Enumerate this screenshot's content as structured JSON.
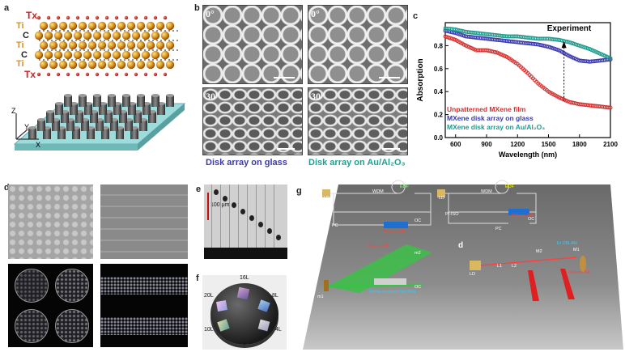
{
  "panels": {
    "a": {
      "label": "a",
      "layers": [
        "Tx",
        "Ti",
        "C",
        "Ti",
        "C",
        "Ti",
        "Tx"
      ],
      "axes": {
        "z": "Z",
        "y": "Y",
        "x": "X"
      }
    },
    "b": {
      "label": "b",
      "angles": [
        "0°",
        "0°",
        "30°",
        "30°"
      ],
      "caption_left": "Disk array on glass",
      "caption_right": "Disk array on Au/Al₂O₃"
    },
    "c": {
      "label": "c"
    },
    "d": {
      "label": "d"
    },
    "e": {
      "label": "e",
      "scale": "100 μm"
    },
    "f": {
      "label": "f",
      "sample_labels": [
        "16L",
        "20L",
        "8L",
        "10L",
        "4L"
      ]
    },
    "g": {
      "label": "g",
      "sub_c": "c",
      "sub_d": "d",
      "components": [
        "LD",
        "WDM",
        "EDF",
        "PI-ISO",
        "PC",
        "MXene-SA",
        "OC",
        "LD",
        "WDM",
        "EDF",
        "PI-ISO",
        "PC",
        "MXene-SA",
        "OC",
        "MXene-SA",
        "m1",
        "m2",
        "Diode-pumped Nd:YAG",
        "OC",
        "LD",
        "L1",
        "L2",
        "M2",
        "Er:ZBLAN",
        "M1",
        "MXene-SA"
      ]
    }
  },
  "chart_data": {
    "type": "scatter",
    "title": "",
    "annotation": "Experiment",
    "xlabel": "Wavelength (nm)",
    "ylabel": "Absorption",
    "xlim": [
      500,
      2100
    ],
    "ylim": [
      0.0,
      1.0
    ],
    "xticks": [
      600,
      900,
      1200,
      1500,
      1800,
      2100
    ],
    "yticks": [
      0.0,
      0.2,
      0.4,
      0.6,
      0.8
    ],
    "ytick_labels": [
      "0.0",
      "0.2",
      "0.4",
      "0.6",
      "0.8"
    ],
    "legend_placement": "bottom-left",
    "series": [
      {
        "name": "Unpatterned MXene film",
        "color": "#d43030",
        "x": [
          500,
          600,
          700,
          800,
          900,
          1000,
          1100,
          1200,
          1300,
          1400,
          1500,
          1600,
          1700,
          1800,
          1900,
          2000,
          2100
        ],
        "y": [
          0.88,
          0.85,
          0.8,
          0.76,
          0.76,
          0.74,
          0.7,
          0.64,
          0.56,
          0.47,
          0.4,
          0.35,
          0.31,
          0.29,
          0.28,
          0.27,
          0.26
        ]
      },
      {
        "name": "MXene disk array on glass",
        "color": "#3838b0",
        "x": [
          500,
          600,
          700,
          800,
          900,
          1000,
          1100,
          1200,
          1300,
          1400,
          1500,
          1600,
          1700,
          1800,
          1900,
          2000,
          2100
        ],
        "y": [
          0.93,
          0.91,
          0.88,
          0.87,
          0.86,
          0.85,
          0.84,
          0.83,
          0.82,
          0.81,
          0.79,
          0.76,
          0.71,
          0.67,
          0.66,
          0.67,
          0.68
        ]
      },
      {
        "name": "MXene disk array on Au/Al₂O₃",
        "color": "#1e9a8a",
        "x": [
          500,
          600,
          700,
          800,
          900,
          1000,
          1100,
          1200,
          1300,
          1400,
          1500,
          1600,
          1700,
          1800,
          1900,
          2000,
          2100
        ],
        "y": [
          0.95,
          0.94,
          0.92,
          0.91,
          0.9,
          0.89,
          0.88,
          0.88,
          0.87,
          0.86,
          0.86,
          0.85,
          0.83,
          0.8,
          0.77,
          0.73,
          0.69
        ]
      }
    ]
  },
  "colors": {
    "red": "#d43030",
    "blue": "#3838b0",
    "teal": "#1e9a8a",
    "caption_blue": "#3a3aa8",
    "caption_teal": "#1ea090"
  }
}
